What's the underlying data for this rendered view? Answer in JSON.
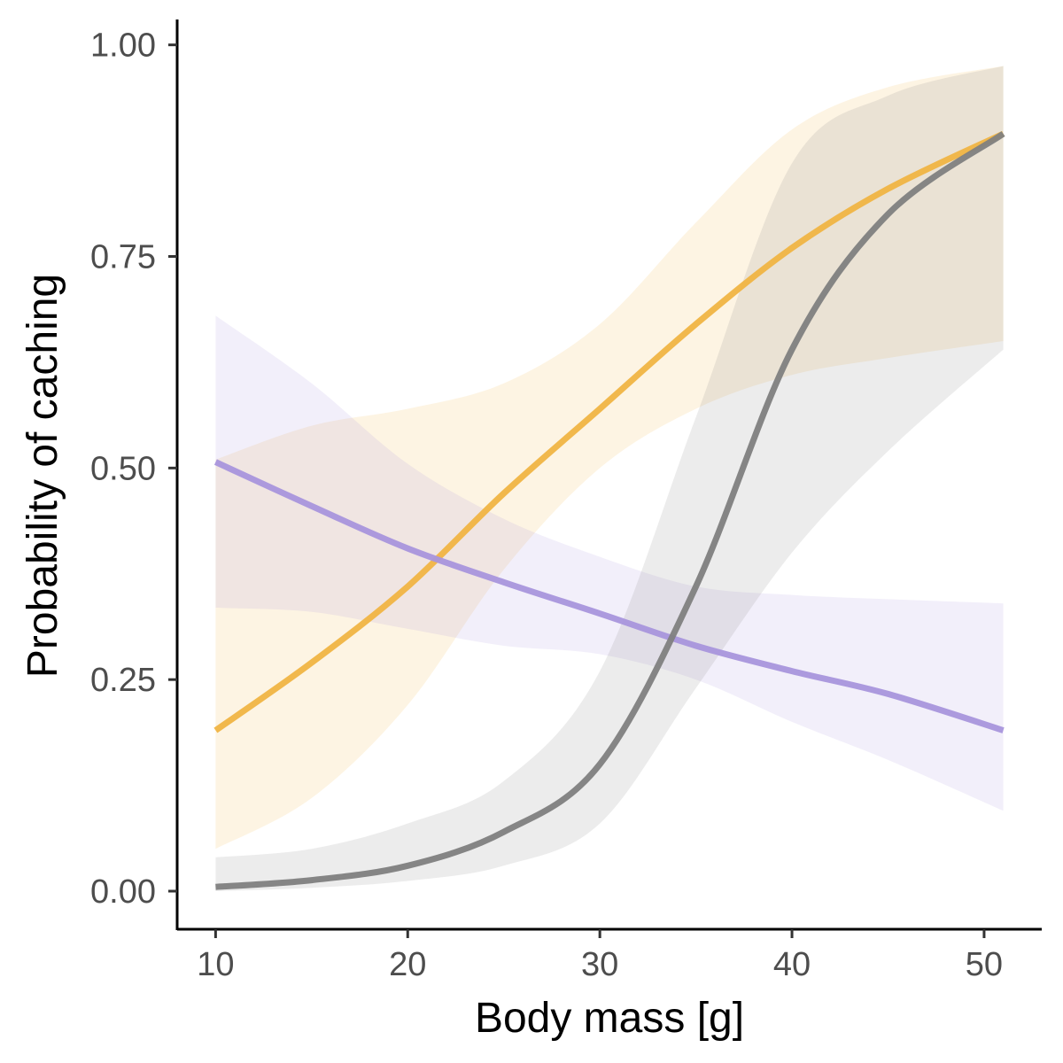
{
  "chart_data": {
    "type": "line",
    "xlabel": "Body mass [g]",
    "ylabel": "Probability of caching",
    "xlim": [
      8,
      53
    ],
    "ylim": [
      -0.045,
      1.03
    ],
    "x_ticks": [
      10,
      20,
      30,
      40,
      50
    ],
    "x_tick_labels": [
      "10",
      "20",
      "30",
      "40",
      "50"
    ],
    "y_ticks": [
      0,
      0.25,
      0.5,
      0.75,
      1
    ],
    "y_tick_labels": [
      "0.00",
      "0.25",
      "0.50",
      "0.75",
      "1.00"
    ],
    "grid": false,
    "legend": "none",
    "x": [
      10,
      15,
      20,
      25,
      30,
      35,
      40,
      45,
      51
    ],
    "series": [
      {
        "color": "#f0b443",
        "values": [
          0.19,
          0.27,
          0.36,
          0.47,
          0.57,
          0.67,
          0.76,
          0.83,
          0.895
        ],
        "lower": [
          0.05,
          0.11,
          0.22,
          0.38,
          0.5,
          0.57,
          0.61,
          0.63,
          0.65
        ],
        "upper": [
          0.51,
          0.55,
          0.57,
          0.6,
          0.67,
          0.79,
          0.9,
          0.95,
          0.975
        ]
      },
      {
        "color": "#a895dc",
        "values": [
          0.507,
          0.455,
          0.405,
          0.365,
          0.328,
          0.29,
          0.26,
          0.233,
          0.19
        ],
        "lower": [
          0.335,
          0.33,
          0.31,
          0.29,
          0.28,
          0.25,
          0.2,
          0.155,
          0.095
        ],
        "upper": [
          0.68,
          0.6,
          0.505,
          0.44,
          0.395,
          0.36,
          0.35,
          0.345,
          0.34
        ]
      },
      {
        "color": "#7f7f7f",
        "values": [
          0.005,
          0.013,
          0.03,
          0.07,
          0.15,
          0.36,
          0.64,
          0.8,
          0.895
        ],
        "lower": [
          0.0,
          0.004,
          0.012,
          0.03,
          0.08,
          0.24,
          0.4,
          0.52,
          0.64
        ],
        "upper": [
          0.04,
          0.05,
          0.08,
          0.13,
          0.26,
          0.56,
          0.86,
          0.94,
          0.975
        ]
      }
    ]
  }
}
